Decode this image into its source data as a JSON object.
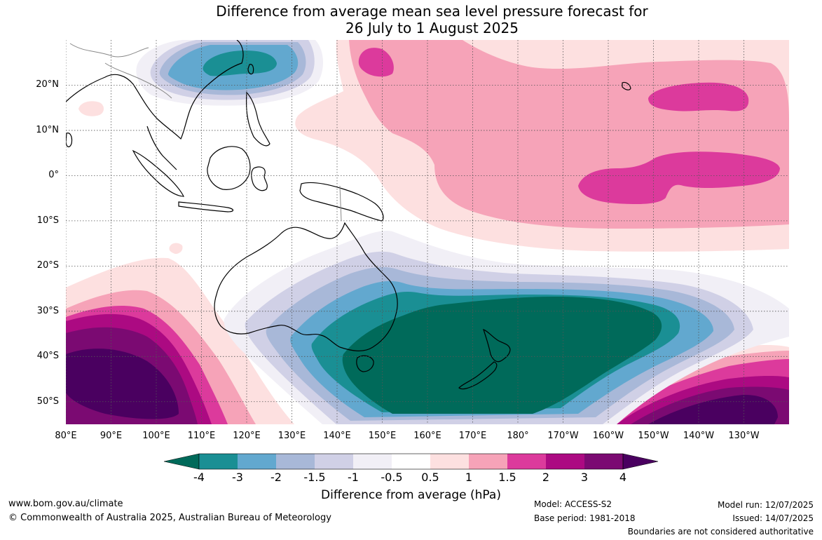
{
  "title": {
    "line1": "Difference from average mean sea level pressure forecast for",
    "line2": "26 July to 1 August 2025"
  },
  "map": {
    "lat_labels": [
      "20°N",
      "10°N",
      "0°",
      "10°S",
      "20°S",
      "30°S",
      "40°S",
      "50°S"
    ],
    "lat_values": [
      20,
      10,
      0,
      -10,
      -20,
      -30,
      -40,
      -50
    ],
    "lon_labels": [
      "80°E",
      "90°E",
      "100°E",
      "110°E",
      "120°E",
      "130°E",
      "140°E",
      "150°E",
      "160°E",
      "170°E",
      "180°",
      "170°W",
      "160°W",
      "150°W",
      "140°W",
      "130°W"
    ],
    "lon_values": [
      80,
      90,
      100,
      110,
      120,
      130,
      140,
      150,
      160,
      170,
      180,
      190,
      200,
      210,
      220,
      230
    ],
    "extent": {
      "lon_min": 80,
      "lon_max": 240,
      "lat_min": -55,
      "lat_max": 30
    }
  },
  "colorbar": {
    "title": "Difference from average (hPa)",
    "ticks": [
      "-4",
      "-3",
      "-2",
      "-1.5",
      "-1",
      "-0.5",
      "0.5",
      "1",
      "1.5",
      "2",
      "3",
      "4"
    ],
    "colors": [
      "#006a5a",
      "#1a8f94",
      "#62a8cf",
      "#a8b8d8",
      "#d0d0e6",
      "#f1eff6",
      "#ffffff",
      "#fde0e0",
      "#f6a3b8",
      "#dc3a9c",
      "#ac0a82",
      "#7b0a72",
      "#4a0060"
    ]
  },
  "footer": {
    "url": "www.bom.gov.au/climate",
    "copyright": "© Commonwealth of Australia 2025, Australian Bureau of Meteorology",
    "model": "Model: ACCESS-S2",
    "base_period": "Base period: 1981-2018",
    "model_run": "Model run: 12/07/2025",
    "issued": "Issued: 14/07/2025",
    "disclaimer": "Boundaries are not considered authoritative"
  }
}
